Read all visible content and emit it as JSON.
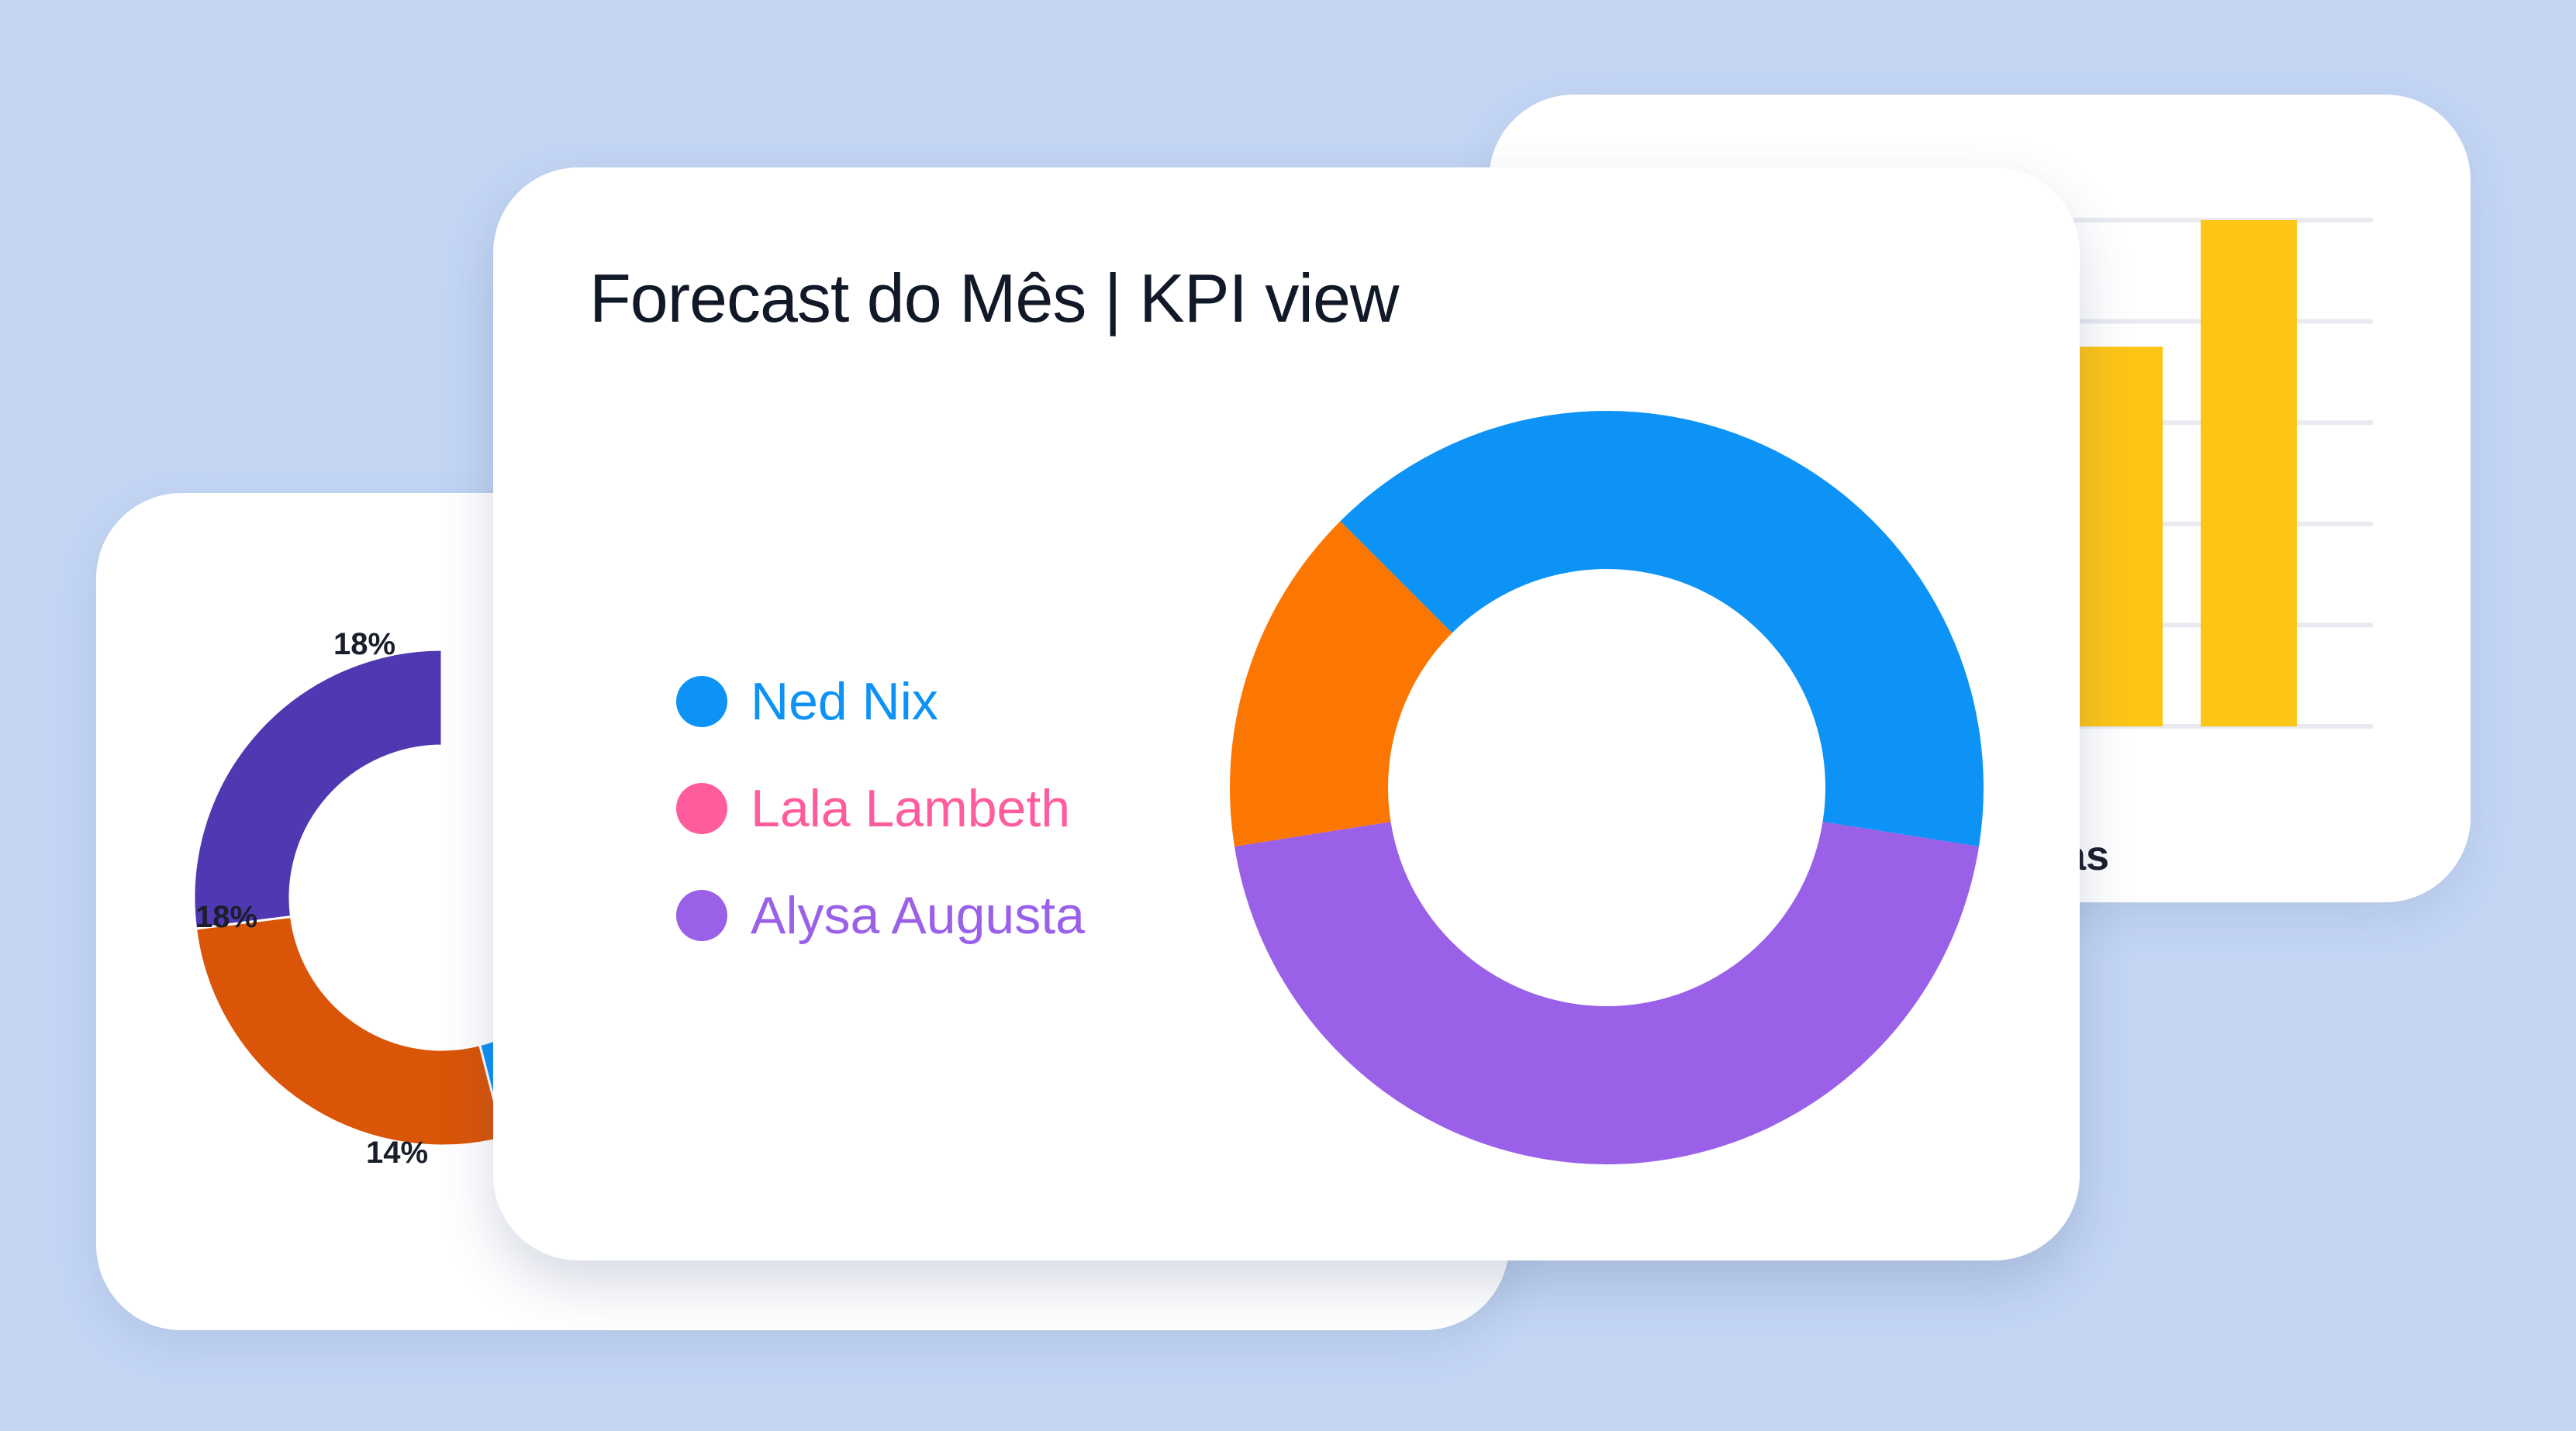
{
  "colors": {
    "background": "#c4d6f4",
    "card": "#ffffff",
    "title_text": "#111827",
    "bar": "#fdc516",
    "gridline": "#e8eaf0"
  },
  "main_card": {
    "title": "Forecast do Mês | KPI view",
    "legend": [
      {
        "label": "Ned Nix",
        "color": "#0d93f5"
      },
      {
        "label": "Lala Lambeth",
        "color": "#ff5c9e"
      },
      {
        "label": "Alysa Augusta",
        "color": "#9a60e8"
      }
    ]
  },
  "back_card_bar": {
    "axis_label_visible": "as"
  },
  "chart_data": [
    {
      "type": "donut",
      "series": [
        {
          "color": "#0d93f5",
          "value": 40
        },
        {
          "color": "#9a60e8",
          "value": 45
        },
        {
          "color": "#fc7602",
          "value": 15
        }
      ]
    },
    {
      "type": "donut",
      "labels": [
        "18%",
        "18%",
        "14%"
      ],
      "series": [
        {
          "color": "#5038b2",
          "value": 18,
          "label": "18%"
        },
        {
          "color": "#da5507",
          "value": 18,
          "label": "18%"
        },
        {
          "color": "#0d93f5",
          "value": 14,
          "label": "14%"
        }
      ]
    },
    {
      "type": "bar",
      "values": [
        75,
        100
      ],
      "color": "#fdc516",
      "grid": true
    }
  ]
}
